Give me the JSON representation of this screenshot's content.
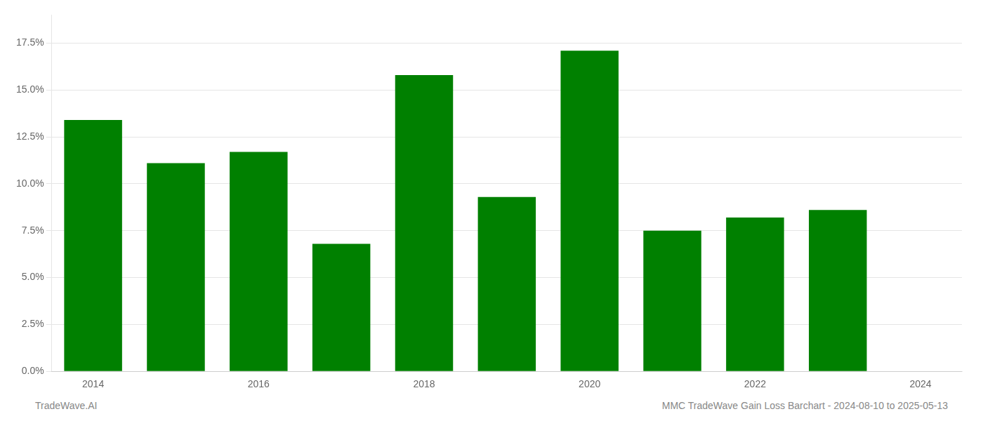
{
  "chart_data": {
    "type": "bar",
    "x": [
      2014,
      2015,
      2016,
      2017,
      2018,
      2019,
      2020,
      2021,
      2022,
      2023
    ],
    "values": [
      0.134,
      0.111,
      0.117,
      0.068,
      0.158,
      0.093,
      0.171,
      0.075,
      0.082,
      0.086
    ],
    "color": "#008000",
    "xlim": [
      2013.5,
      2024.5
    ],
    "xticks": [
      2014,
      2016,
      2018,
      2020,
      2022,
      2024
    ],
    "ylim": [
      0,
      0.19
    ],
    "yticks": [
      {
        "value": 0.0,
        "label": "0.0%"
      },
      {
        "value": 0.025,
        "label": "2.5%"
      },
      {
        "value": 0.05,
        "label": "5.0%"
      },
      {
        "value": 0.075,
        "label": "7.5%"
      },
      {
        "value": 0.1,
        "label": "10.0%"
      },
      {
        "value": 0.125,
        "label": "12.5%"
      },
      {
        "value": 0.15,
        "label": "15.0%"
      },
      {
        "value": 0.175,
        "label": "17.5%"
      }
    ],
    "grid": "y",
    "annotations": [
      "TradeWave.AI",
      "MMC TradeWave Gain Loss Barchart - 2024-08-10 to 2025-05-13"
    ]
  }
}
